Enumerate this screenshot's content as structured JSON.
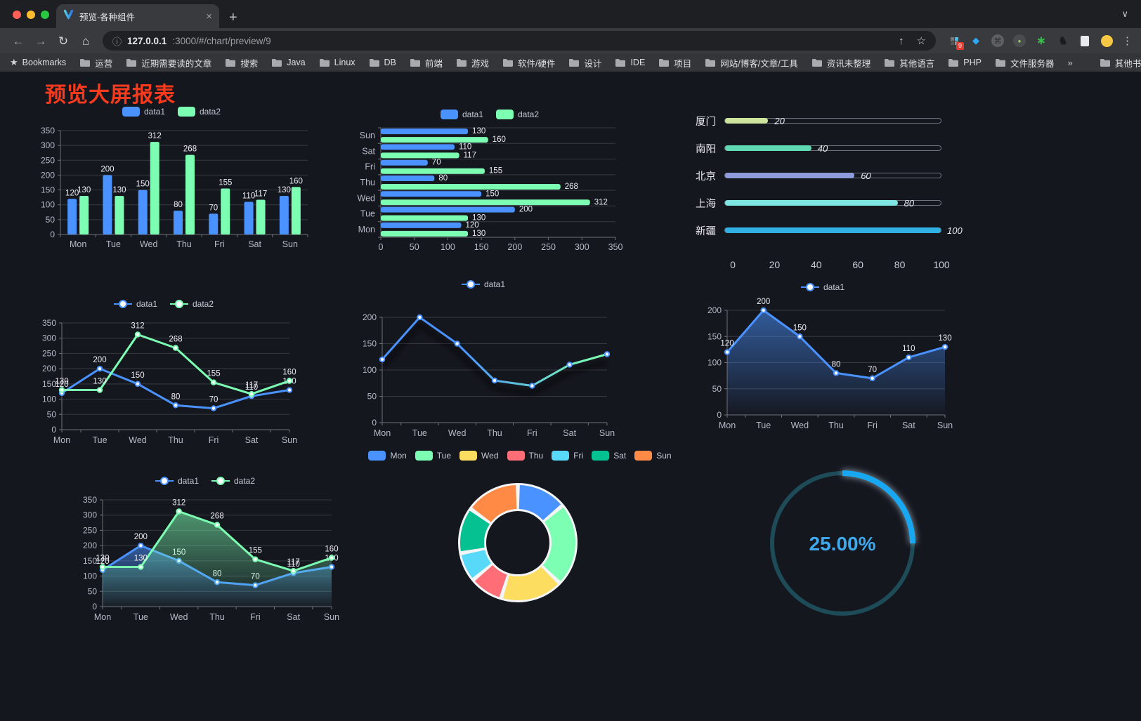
{
  "browser": {
    "tab_title": "预览-各种组件",
    "close_icon": "×",
    "new_tab_icon": "+",
    "tab_chevron_icon": "∨",
    "back_icon": "←",
    "forward_icon": "→",
    "reload_icon": "↻",
    "home_icon": "⌂",
    "url_info_icon": "ⓘ",
    "url_host": "127.0.0.1",
    "url_path": ":3000/#/chart/preview/9",
    "share_icon": "↑",
    "star_icon": "☆",
    "menu_icon": "⋮",
    "extension_badge": "9",
    "ext_cmd_glyph": "⌘",
    "ext_dot_glyph": "●",
    "ext_star_glyph": "∗",
    "ext_pin_glyph": "♞",
    "bookmarks_label": "Bookmarks",
    "bookmarks": [
      "运营",
      "近期需要读的文章",
      "搜索",
      "Java",
      "Linux",
      "DB",
      "前端",
      "游戏",
      "软件/硬件",
      "设计",
      "IDE",
      "项目",
      "网站/博客/文章/工具",
      "资讯未整理",
      "其他语言",
      "PHP",
      "文件服务器"
    ],
    "bookmarks_overflow": "»",
    "other_bookmarks": "其他书签"
  },
  "page": {
    "title": "预览大屏报表",
    "title_color": "#f63a1e",
    "background": "#15171f"
  },
  "palette": {
    "blue": "#4992ff",
    "green": "#7cffb2",
    "yellow": "#fddd60",
    "red": "#ff6e76",
    "cyan": "#58d9f9",
    "teal": "#05c091",
    "orange": "#ff8a45",
    "axis_text": "#b7b9c6",
    "axis_line": "#6e7079",
    "grid": "rgba(255,255,255,0.15)",
    "value_label": "#eceef4"
  },
  "chart_data": [
    {
      "id": "c1",
      "type": "bar",
      "legend": "rect",
      "categories": [
        "Mon",
        "Tue",
        "Wed",
        "Thu",
        "Fri",
        "Sat",
        "Sun"
      ],
      "series": [
        {
          "name": "data1",
          "color": "#4992ff",
          "values": [
            120,
            200,
            150,
            80,
            70,
            110,
            130
          ]
        },
        {
          "name": "data2",
          "color": "#7cffb2",
          "values": [
            130,
            130,
            312,
            268,
            155,
            117,
            160
          ]
        }
      ],
      "ymax": 350,
      "ystep": 50
    },
    {
      "id": "c2",
      "type": "hbar",
      "legend": "rect",
      "categories": [
        "Mon",
        "Tue",
        "Wed",
        "Thu",
        "Fri",
        "Sat",
        "Sun"
      ],
      "display_order_top_to_bottom": [
        "Sun",
        "Sat",
        "Fri",
        "Thu",
        "Wed",
        "Tue",
        "Mon"
      ],
      "series": [
        {
          "name": "data1",
          "color": "#4992ff",
          "values": [
            120,
            200,
            150,
            80,
            70,
            110,
            130
          ]
        },
        {
          "name": "data2",
          "color": "#7cffb2",
          "values": [
            130,
            130,
            312,
            268,
            155,
            117,
            160
          ]
        }
      ],
      "xmax": 350,
      "xstep": 50
    },
    {
      "id": "c3",
      "type": "progress",
      "items": [
        {
          "label": "厦门",
          "value": 20,
          "color": "#cde59d"
        },
        {
          "label": "南阳",
          "value": 40,
          "color": "#60d8b2"
        },
        {
          "label": "北京",
          "value": 60,
          "color": "#8f9bdd"
        },
        {
          "label": "上海",
          "value": 80,
          "color": "#7fe5e2"
        },
        {
          "label": "新疆",
          "value": 100,
          "color": "#2fb1e3"
        }
      ],
      "ticks": [
        0,
        20,
        40,
        60,
        80,
        100
      ]
    },
    {
      "id": "c4",
      "type": "line",
      "legend": "line",
      "labels": true,
      "categories": [
        "Mon",
        "Tue",
        "Wed",
        "Thu",
        "Fri",
        "Sat",
        "Sun"
      ],
      "series": [
        {
          "name": "data1",
          "color": "#4992ff",
          "values": [
            120,
            200,
            150,
            80,
            70,
            110,
            130
          ]
        },
        {
          "name": "data2",
          "color": "#7cffb2",
          "values": [
            130,
            130,
            312,
            268,
            155,
            117,
            160
          ]
        }
      ],
      "ymax": 350,
      "ystep": 50
    },
    {
      "id": "c5",
      "type": "line",
      "legend": "line",
      "labels": false,
      "categories": [
        "Mon",
        "Tue",
        "Wed",
        "Thu",
        "Fri",
        "Sat",
        "Sun"
      ],
      "series": [
        {
          "name": "data1",
          "color": "#4992ff",
          "gradient": [
            "#4992ff",
            "#7cffb2"
          ],
          "shadow": true,
          "values": [
            120,
            200,
            150,
            80,
            70,
            110,
            130
          ]
        }
      ],
      "ymax": 200,
      "ystep": 50
    },
    {
      "id": "c6",
      "type": "line",
      "legend": "line",
      "labels": true,
      "categories": [
        "Mon",
        "Tue",
        "Wed",
        "Thu",
        "Fri",
        "Sat",
        "Sun"
      ],
      "series": [
        {
          "name": "data1",
          "color": "#4992ff",
          "area": true,
          "values": [
            120,
            200,
            150,
            80,
            70,
            110,
            130
          ]
        }
      ],
      "ymax": 200,
      "ystep": 50
    },
    {
      "id": "c7",
      "type": "line",
      "legend": "line",
      "labels": true,
      "categories": [
        "Mon",
        "Tue",
        "Wed",
        "Thu",
        "Fri",
        "Sat",
        "Sun"
      ],
      "series": [
        {
          "name": "data1",
          "color": "#4992ff",
          "area": true,
          "values": [
            120,
            200,
            150,
            80,
            70,
            110,
            130
          ]
        },
        {
          "name": "data2",
          "color": "#7cffb2",
          "area": true,
          "values": [
            130,
            130,
            312,
            268,
            155,
            117,
            160
          ]
        }
      ],
      "ymax": 350,
      "ystep": 50
    },
    {
      "id": "c8",
      "type": "donut",
      "legend": "rect",
      "categories": [
        "Mon",
        "Tue",
        "Wed",
        "Thu",
        "Fri",
        "Sat",
        "Sun"
      ],
      "values": [
        120,
        200,
        150,
        80,
        70,
        110,
        130
      ],
      "colors": [
        "#4992ff",
        "#7cffb2",
        "#fddd60",
        "#ff6e76",
        "#58d9f9",
        "#05c091",
        "#ff8a45"
      ],
      "border_color": "#f3f5f7"
    },
    {
      "id": "c9",
      "type": "gauge",
      "value": 25,
      "label": "25.00%",
      "track_color": "#1d4b58",
      "arc_color": "#18a8f2",
      "text_color": "#3fa9ee"
    }
  ]
}
